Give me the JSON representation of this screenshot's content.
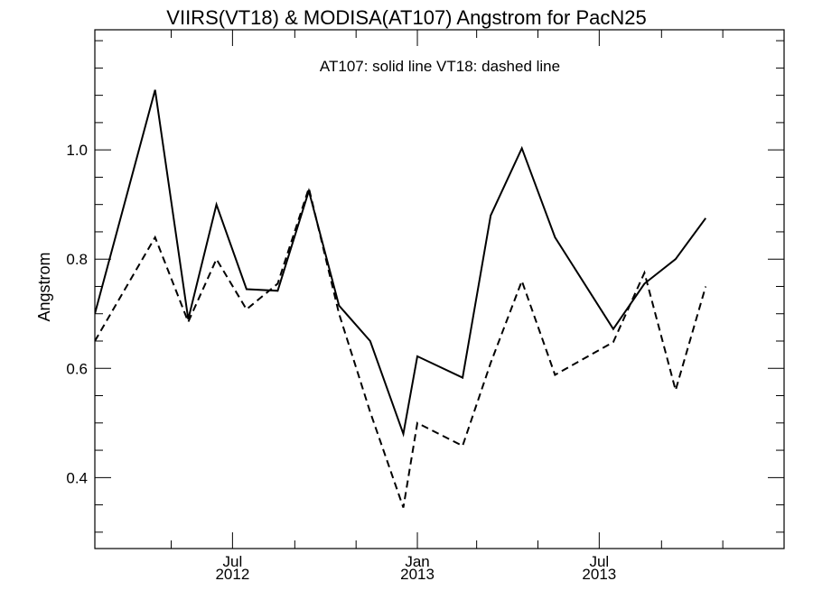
{
  "chart_data": {
    "type": "line",
    "title": "VIIRS(VT18) & MODISA(AT107)  Angstrom for PacN25",
    "annotation": "AT107: solid line   VT18: dashed line",
    "xlabel": "",
    "ylabel": "Angstrom",
    "x_axis": {
      "type": "date",
      "range": [
        "2012-02-15",
        "2014-01-01"
      ],
      "major_ticks": [
        {
          "date": "2012-07-01",
          "month": "Jul",
          "year": "2012"
        },
        {
          "date": "2013-01-01",
          "month": "Jan",
          "year": "2013"
        },
        {
          "date": "2013-07-01",
          "month": "Jul",
          "year": "2013"
        }
      ],
      "minor_ticks": [
        "2012-05-01",
        "2012-09-01",
        "2012-11-01",
        "2013-03-01",
        "2013-05-01",
        "2013-09-01",
        "2013-11-01"
      ]
    },
    "y_axis": {
      "range": [
        0.27,
        1.22
      ],
      "major_ticks": [
        0.4,
        0.6,
        0.8,
        1.0
      ],
      "tick_labels": [
        "0.4",
        "0.6",
        "0.8",
        "1.0"
      ],
      "minor_step": 0.05
    },
    "grid": false,
    "series": [
      {
        "name": "AT107",
        "style": "solid",
        "color": "#000000",
        "points": [
          {
            "x": "2012-02-15",
            "y": 0.7
          },
          {
            "x": "2012-04-15",
            "y": 1.11
          },
          {
            "x": "2012-05-18",
            "y": 0.69
          },
          {
            "x": "2012-06-15",
            "y": 0.9
          },
          {
            "x": "2012-07-15",
            "y": 0.745
          },
          {
            "x": "2012-08-15",
            "y": 0.742
          },
          {
            "x": "2012-09-15",
            "y": 0.925
          },
          {
            "x": "2012-10-15",
            "y": 0.715
          },
          {
            "x": "2012-11-15",
            "y": 0.65
          },
          {
            "x": "2012-12-18",
            "y": 0.48
          },
          {
            "x": "2013-01-01",
            "y": 0.622
          },
          {
            "x": "2013-02-15",
            "y": 0.583
          },
          {
            "x": "2013-03-15",
            "y": 0.88
          },
          {
            "x": "2013-04-15",
            "y": 1.003
          },
          {
            "x": "2013-05-18",
            "y": 0.84
          },
          {
            "x": "2013-07-15",
            "y": 0.672
          },
          {
            "x": "2013-08-15",
            "y": 0.755
          },
          {
            "x": "2013-09-15",
            "y": 0.8
          },
          {
            "x": "2013-10-15",
            "y": 0.875
          }
        ]
      },
      {
        "name": "VT18",
        "style": "dashed",
        "color": "#000000",
        "points": [
          {
            "x": "2012-02-15",
            "y": 0.65
          },
          {
            "x": "2012-04-15",
            "y": 0.84
          },
          {
            "x": "2012-05-18",
            "y": 0.685
          },
          {
            "x": "2012-06-15",
            "y": 0.8
          },
          {
            "x": "2012-07-15",
            "y": 0.708
          },
          {
            "x": "2012-08-15",
            "y": 0.755
          },
          {
            "x": "2012-09-15",
            "y": 0.93
          },
          {
            "x": "2012-10-15",
            "y": 0.7
          },
          {
            "x": "2012-11-15",
            "y": 0.52
          },
          {
            "x": "2012-12-18",
            "y": 0.345
          },
          {
            "x": "2013-01-01",
            "y": 0.5
          },
          {
            "x": "2013-02-15",
            "y": 0.458
          },
          {
            "x": "2013-03-15",
            "y": 0.61
          },
          {
            "x": "2013-04-15",
            "y": 0.76
          },
          {
            "x": "2013-05-18",
            "y": 0.588
          },
          {
            "x": "2013-07-15",
            "y": 0.648
          },
          {
            "x": "2013-08-15",
            "y": 0.775
          },
          {
            "x": "2013-09-15",
            "y": 0.56
          },
          {
            "x": "2013-10-15",
            "y": 0.75
          }
        ]
      }
    ]
  }
}
